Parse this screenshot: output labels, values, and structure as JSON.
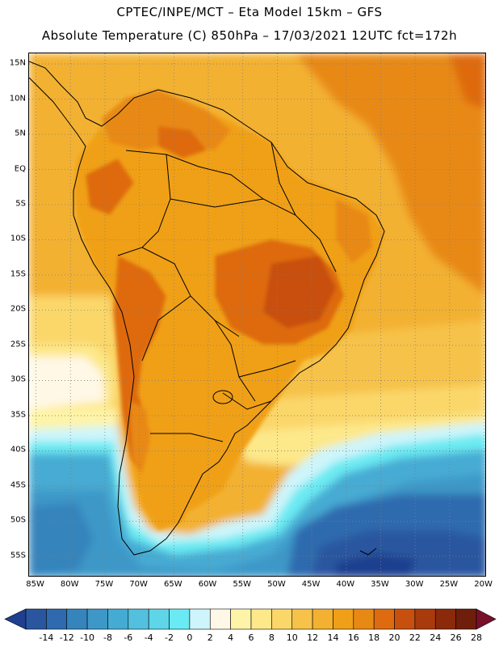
{
  "header": {
    "line1": "CPTEC/INPE/MCT –  Eta Model 15km – GFS",
    "line2": "Absolute Temperature (C) 850hPa – 17/03/2021 12UTC fct=172h"
  },
  "map": {
    "lat_labels": [
      "15N",
      "10N",
      "5N",
      "EQ",
      "5S",
      "10S",
      "15S",
      "20S",
      "25S",
      "30S",
      "35S",
      "40S",
      "45S",
      "50S",
      "55S"
    ],
    "lon_labels": [
      "85W",
      "80W",
      "75W",
      "70W",
      "65W",
      "60W",
      "55W",
      "50W",
      "45W",
      "40W",
      "35W",
      "30W",
      "25W",
      "20W"
    ],
    "lat_values": [
      15,
      10,
      5,
      0,
      -5,
      -10,
      -15,
      -20,
      -25,
      -30,
      -35,
      -40,
      -45,
      -50,
      -55
    ],
    "lon_values": [
      -85,
      -80,
      -75,
      -70,
      -65,
      -60,
      -55,
      -50,
      -45,
      -40,
      -35,
      -30,
      -25,
      -20
    ],
    "lat_range": [
      -58,
      16.5
    ],
    "lon_range": [
      -86,
      -19.6
    ],
    "grid": "dotted"
  },
  "colorbar": {
    "labels": [
      "-14",
      "-12",
      "-10",
      "-8",
      "-6",
      "-4",
      "-2",
      "0",
      "2",
      "4",
      "6",
      "8",
      "10",
      "12",
      "14",
      "16",
      "18",
      "20",
      "22",
      "24",
      "26",
      "28"
    ],
    "colors": [
      "#1f3f8f",
      "#2a56a0",
      "#2f6aae",
      "#3584bc",
      "#3d98c8",
      "#46abd3",
      "#52c0de",
      "#5fd5e8",
      "#6aeaf2",
      "#cdf5fb",
      "#fff8e6",
      "#fef4a8",
      "#fde88a",
      "#fbd76a",
      "#f6c24a",
      "#f3b132",
      "#f0a018",
      "#e88914",
      "#de6b10",
      "#c8500e",
      "#a83a0c",
      "#8a2a0a",
      "#6e1e0a",
      "#7a0f2a"
    ],
    "unit": "C"
  },
  "colors": {
    "ocean_warm": "#f3b132",
    "ocean_hot": "#e88914",
    "land": "#f0a018",
    "high": "#de6b10",
    "cold": "#3584bc"
  }
}
